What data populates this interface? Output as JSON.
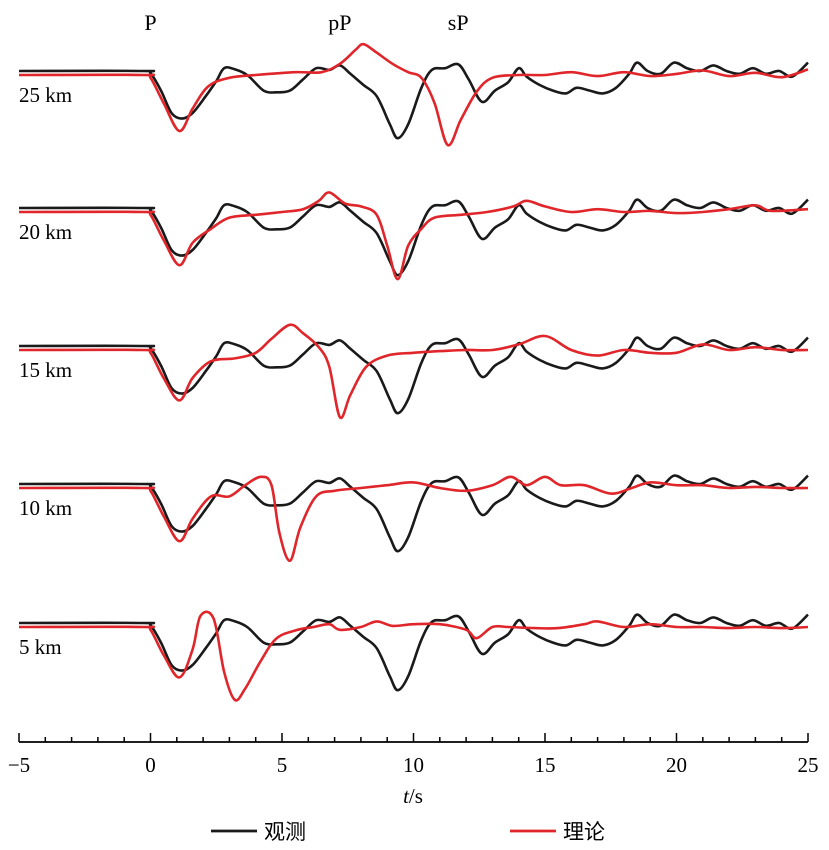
{
  "chart_data": {
    "type": "line",
    "xlabel_italic": "t",
    "xlabel_unit": "/s",
    "xlim": [
      -5,
      25
    ],
    "xticks": [
      -5,
      0,
      5,
      10,
      15,
      20,
      25
    ],
    "tick_labels": [
      "−5",
      "0",
      "5",
      "10",
      "15",
      "20",
      "25"
    ],
    "phases": [
      {
        "name": "P",
        "t": 0
      },
      {
        "name": "pP",
        "t": 7.2
      },
      {
        "name": "sP",
        "t": 11.7
      }
    ],
    "legend": [
      {
        "name": "观测",
        "color": "#1a1a1a"
      },
      {
        "name": "理论",
        "color": "#e0262a"
      }
    ],
    "observed": [
      [
        -5,
        0
      ],
      [
        -0.3,
        0
      ],
      [
        0,
        -0.04
      ],
      [
        0.4,
        -0.35
      ],
      [
        0.8,
        -0.75
      ],
      [
        1.2,
        -0.85
      ],
      [
        1.6,
        -0.75
      ],
      [
        2.1,
        -0.45
      ],
      [
        2.5,
        -0.18
      ],
      [
        2.8,
        0.05
      ],
      [
        3.2,
        0.03
      ],
      [
        3.7,
        -0.08
      ],
      [
        4.3,
        -0.35
      ],
      [
        4.8,
        -0.38
      ],
      [
        5.3,
        -0.35
      ],
      [
        5.8,
        -0.15
      ],
      [
        6.3,
        0.05
      ],
      [
        6.8,
        0.02
      ],
      [
        7.2,
        0.1
      ],
      [
        7.6,
        -0.05
      ],
      [
        8.1,
        -0.25
      ],
      [
        8.6,
        -0.45
      ],
      [
        9.1,
        -0.95
      ],
      [
        9.4,
        -1.2
      ],
      [
        9.8,
        -0.95
      ],
      [
        10.3,
        -0.3
      ],
      [
        10.7,
        0.02
      ],
      [
        11.2,
        0.05
      ],
      [
        11.7,
        0.12
      ],
      [
        12.1,
        -0.15
      ],
      [
        12.6,
        -0.55
      ],
      [
        13.1,
        -0.35
      ],
      [
        13.6,
        -0.2
      ],
      [
        14.0,
        0.05
      ],
      [
        14.3,
        -0.1
      ],
      [
        14.8,
        -0.25
      ],
      [
        15.3,
        -0.35
      ],
      [
        15.8,
        -0.4
      ],
      [
        16.2,
        -0.3
      ],
      [
        16.7,
        -0.35
      ],
      [
        17.2,
        -0.4
      ],
      [
        17.7,
        -0.3
      ],
      [
        18.2,
        -0.05
      ],
      [
        18.5,
        0.15
      ],
      [
        18.9,
        0.0
      ],
      [
        19.4,
        -0.05
      ],
      [
        19.9,
        0.15
      ],
      [
        20.4,
        0.05
      ],
      [
        20.9,
        0.0
      ],
      [
        21.4,
        0.1
      ],
      [
        21.9,
        0.0
      ],
      [
        22.4,
        -0.05
      ],
      [
        22.9,
        0.05
      ],
      [
        23.4,
        -0.05
      ],
      [
        23.9,
        0.0
      ],
      [
        24.4,
        -0.1
      ],
      [
        25,
        0.15
      ]
    ],
    "traces": [
      {
        "label": "25 km",
        "depth": 25,
        "synthetic": [
          [
            -5,
            0
          ],
          [
            -0.3,
            0
          ],
          [
            0,
            -0.05
          ],
          [
            0.5,
            -0.5
          ],
          [
            1.1,
            -1.0
          ],
          [
            1.6,
            -0.6
          ],
          [
            2.2,
            -0.2
          ],
          [
            3.0,
            -0.05
          ],
          [
            4.0,
            0.0
          ],
          [
            5.5,
            0.05
          ],
          [
            6.5,
            0.05
          ],
          [
            7.2,
            0.2
          ],
          [
            7.8,
            0.45
          ],
          [
            8.1,
            0.55
          ],
          [
            8.6,
            0.4
          ],
          [
            9.2,
            0.2
          ],
          [
            9.8,
            0.05
          ],
          [
            10.3,
            -0.05
          ],
          [
            10.8,
            -0.5
          ],
          [
            11.3,
            -1.25
          ],
          [
            11.8,
            -0.8
          ],
          [
            12.4,
            -0.3
          ],
          [
            13.0,
            -0.05
          ],
          [
            14.0,
            0.0
          ],
          [
            15.0,
            0.0
          ],
          [
            16.0,
            0.05
          ],
          [
            17.0,
            -0.02
          ],
          [
            18.0,
            0.05
          ],
          [
            19.0,
            -0.02
          ],
          [
            20.0,
            0.02
          ],
          [
            21.0,
            0.08
          ],
          [
            22.0,
            -0.02
          ],
          [
            23.0,
            0.04
          ],
          [
            24.0,
            -0.04
          ],
          [
            25,
            0.1
          ]
        ]
      },
      {
        "label": "20 km",
        "depth": 20,
        "synthetic": [
          [
            -5,
            0
          ],
          [
            -0.3,
            0
          ],
          [
            0,
            -0.05
          ],
          [
            0.5,
            -0.5
          ],
          [
            1.1,
            -0.95
          ],
          [
            1.6,
            -0.55
          ],
          [
            2.3,
            -0.3
          ],
          [
            3.0,
            -0.1
          ],
          [
            4.0,
            -0.05
          ],
          [
            5.0,
            0.0
          ],
          [
            5.8,
            0.05
          ],
          [
            6.4,
            0.2
          ],
          [
            6.8,
            0.35
          ],
          [
            7.4,
            0.15
          ],
          [
            8.0,
            0.1
          ],
          [
            8.6,
            -0.05
          ],
          [
            9.0,
            -0.6
          ],
          [
            9.4,
            -1.2
          ],
          [
            9.8,
            -0.6
          ],
          [
            10.3,
            -0.3
          ],
          [
            10.8,
            -0.1
          ],
          [
            11.8,
            -0.05
          ],
          [
            12.8,
            0.0
          ],
          [
            13.8,
            0.1
          ],
          [
            14.3,
            0.2
          ],
          [
            15.0,
            0.1
          ],
          [
            16.0,
            0.0
          ],
          [
            17.0,
            0.05
          ],
          [
            18.0,
            0.0
          ],
          [
            19.0,
            0.02
          ],
          [
            20.0,
            -0.02
          ],
          [
            21.0,
            0.0
          ],
          [
            22.0,
            0.05
          ],
          [
            23.0,
            0.12
          ],
          [
            23.6,
            0.02
          ],
          [
            25,
            0.05
          ]
        ]
      },
      {
        "label": "15 km",
        "depth": 15,
        "synthetic": [
          [
            -5,
            0
          ],
          [
            -0.3,
            0
          ],
          [
            0,
            -0.05
          ],
          [
            0.5,
            -0.5
          ],
          [
            1.1,
            -0.9
          ],
          [
            1.6,
            -0.5
          ],
          [
            2.3,
            -0.2
          ],
          [
            3.2,
            -0.15
          ],
          [
            4.0,
            -0.05
          ],
          [
            4.6,
            0.2
          ],
          [
            5.3,
            0.45
          ],
          [
            5.8,
            0.3
          ],
          [
            6.4,
            0.05
          ],
          [
            6.8,
            -0.3
          ],
          [
            7.2,
            -1.2
          ],
          [
            7.6,
            -0.8
          ],
          [
            8.2,
            -0.3
          ],
          [
            9.0,
            -0.1
          ],
          [
            10.0,
            -0.05
          ],
          [
            11.0,
            -0.02
          ],
          [
            12.0,
            0.0
          ],
          [
            13.0,
            0.0
          ],
          [
            14.0,
            0.1
          ],
          [
            15.0,
            0.25
          ],
          [
            16.0,
            0.0
          ],
          [
            17.0,
            -0.1
          ],
          [
            18.0,
            0.0
          ],
          [
            19.0,
            -0.05
          ],
          [
            20.0,
            -0.05
          ],
          [
            21.0,
            0.1
          ],
          [
            22.0,
            0.0
          ],
          [
            23.0,
            0.05
          ],
          [
            24.0,
            0.0
          ],
          [
            25,
            0.0
          ]
        ]
      },
      {
        "label": "10 km",
        "depth": 10,
        "synthetic": [
          [
            -5,
            0
          ],
          [
            -0.3,
            0
          ],
          [
            0,
            -0.05
          ],
          [
            0.5,
            -0.5
          ],
          [
            1.1,
            -0.95
          ],
          [
            1.6,
            -0.55
          ],
          [
            2.3,
            -0.15
          ],
          [
            3.0,
            -0.15
          ],
          [
            3.6,
            0.05
          ],
          [
            4.2,
            0.2
          ],
          [
            4.6,
            0.05
          ],
          [
            4.9,
            -0.8
          ],
          [
            5.3,
            -1.3
          ],
          [
            5.7,
            -0.7
          ],
          [
            6.3,
            -0.15
          ],
          [
            7.0,
            -0.05
          ],
          [
            8.0,
            0.0
          ],
          [
            9.0,
            0.05
          ],
          [
            10.0,
            0.1
          ],
          [
            11.0,
            0.0
          ],
          [
            12.0,
            -0.05
          ],
          [
            13.0,
            0.05
          ],
          [
            13.7,
            0.2
          ],
          [
            14.3,
            0.05
          ],
          [
            15.0,
            0.2
          ],
          [
            15.6,
            0.05
          ],
          [
            16.5,
            0.05
          ],
          [
            17.5,
            -0.1
          ],
          [
            18.3,
            0.0
          ],
          [
            19.0,
            0.1
          ],
          [
            20.0,
            0.05
          ],
          [
            21.0,
            0.05
          ],
          [
            22.0,
            0.0
          ],
          [
            23.0,
            0.02
          ],
          [
            24.0,
            0.0
          ],
          [
            25,
            0.0
          ]
        ]
      },
      {
        "label": "5 km",
        "depth": 5,
        "synthetic": [
          [
            -5,
            0
          ],
          [
            -0.3,
            0
          ],
          [
            0,
            -0.05
          ],
          [
            0.5,
            -0.5
          ],
          [
            1.1,
            -0.9
          ],
          [
            1.6,
            -0.4
          ],
          [
            1.9,
            0.2
          ],
          [
            2.4,
            0.15
          ],
          [
            2.8,
            -0.8
          ],
          [
            3.2,
            -1.3
          ],
          [
            3.6,
            -1.1
          ],
          [
            4.2,
            -0.6
          ],
          [
            4.8,
            -0.2
          ],
          [
            5.6,
            -0.05
          ],
          [
            6.2,
            0.0
          ],
          [
            6.8,
            0.05
          ],
          [
            7.2,
            -0.05
          ],
          [
            8.0,
            0.0
          ],
          [
            8.6,
            0.1
          ],
          [
            9.2,
            0.02
          ],
          [
            10.0,
            0.05
          ],
          [
            11.0,
            0.05
          ],
          [
            12.0,
            -0.05
          ],
          [
            12.4,
            -0.2
          ],
          [
            13.0,
            0.0
          ],
          [
            13.6,
            0.0
          ],
          [
            14.6,
            -0.02
          ],
          [
            15.5,
            -0.02
          ],
          [
            16.5,
            0.05
          ],
          [
            17.0,
            0.1
          ],
          [
            18.0,
            0.0
          ],
          [
            19.0,
            0.05
          ],
          [
            20.0,
            0.0
          ],
          [
            21.0,
            0.0
          ],
          [
            22.0,
            -0.02
          ],
          [
            23.0,
            0.0
          ],
          [
            24.0,
            -0.02
          ],
          [
            25,
            0.0
          ]
        ]
      }
    ]
  }
}
